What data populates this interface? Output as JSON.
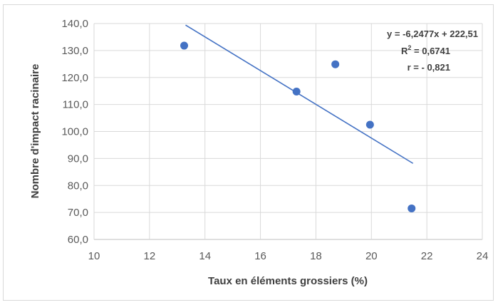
{
  "chart_data": {
    "type": "scatter",
    "xlabel": "Taux en éléments grossiers (%)",
    "ylabel": "Nombre d'impact racinaire",
    "xlim": [
      10,
      24
    ],
    "ylim": [
      60,
      140
    ],
    "x_ticks": [
      "10",
      "12",
      "14",
      "16",
      "18",
      "20",
      "22",
      "24"
    ],
    "y_ticks": [
      "60,0",
      "70,0",
      "80,0",
      "90,0",
      "100,0",
      "110,0",
      "120,0",
      "130,0",
      "140,0"
    ],
    "grid": "vertical and horizontal",
    "series": [
      {
        "points": [
          {
            "x": 13.25,
            "y": 131.8
          },
          {
            "x": 17.3,
            "y": 114.8
          },
          {
            "x": 18.7,
            "y": 124.9
          },
          {
            "x": 19.95,
            "y": 102.5
          },
          {
            "x": 21.45,
            "y": 71.5
          }
        ],
        "color": "#4472c4"
      }
    ],
    "trendline": {
      "slope": -6.2477,
      "intercept": 222.51,
      "x_range": [
        13.3,
        21.5
      ],
      "color": "#4472c4"
    },
    "annotation": {
      "equation": "y = -6,2477x + 222,51",
      "r2_label": "R",
      "r2_exp": "2",
      "r2_value": " = 0,6741",
      "r": "r = - 0,821"
    }
  }
}
